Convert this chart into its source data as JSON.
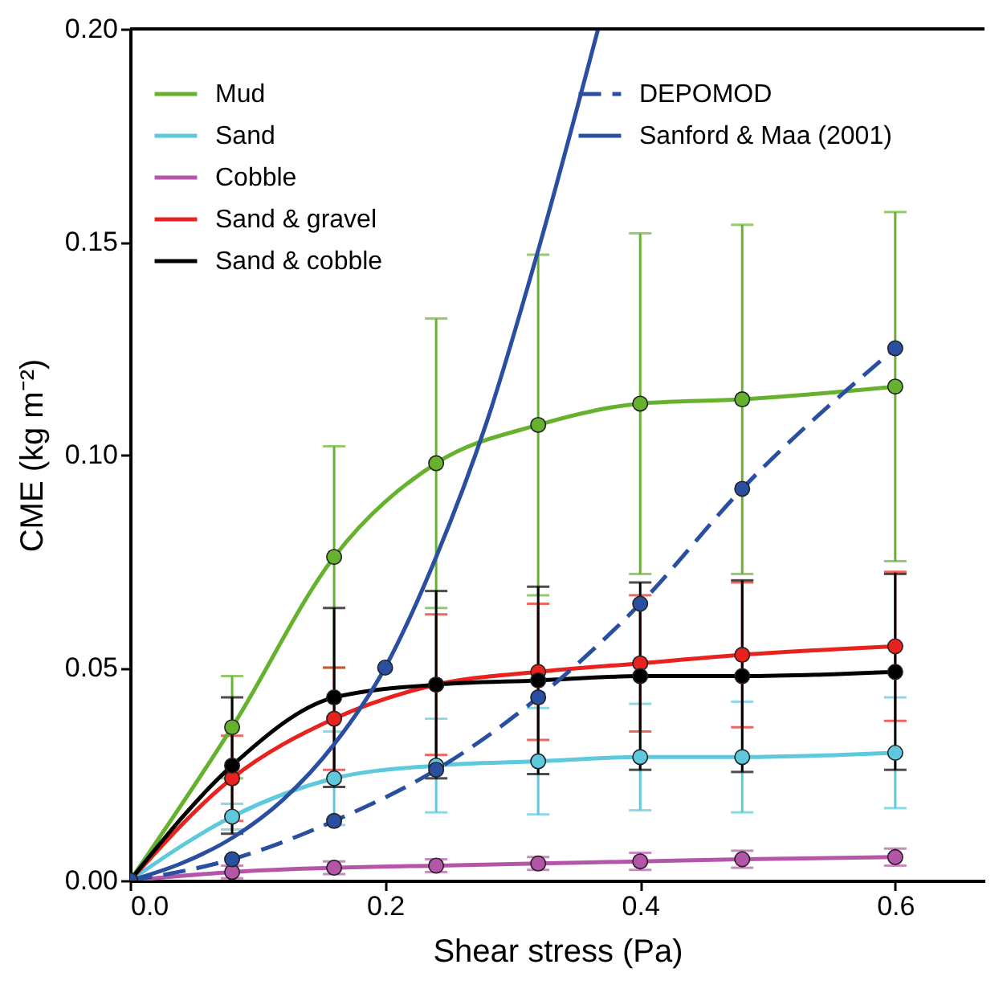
{
  "chart_data": {
    "type": "line",
    "xlabel": "Shear stress (Pa)",
    "ylabel": "CME (kg m⁻²)",
    "xlim": [
      0,
      0.67
    ],
    "ylim": [
      0,
      0.2
    ],
    "xticks": [
      {
        "value": 0,
        "label": "0.0"
      },
      0.2,
      0.4,
      0.6
    ],
    "yticks": [
      {
        "value": 0,
        "label": "0.00"
      },
      0.05,
      {
        "value": 0.1,
        "label": "0.10"
      },
      0.15,
      {
        "value": 0.2,
        "label": "0.20"
      }
    ],
    "grid": false,
    "legend": "top left",
    "marker": "circle",
    "series": [
      {
        "name": "Mud",
        "color": "#66b22e",
        "x": [
          0,
          0.08,
          0.16,
          0.24,
          0.32,
          0.4,
          0.48,
          0.6
        ],
        "values": [
          0,
          0.036,
          0.076,
          0.098,
          0.107,
          0.112,
          0.113,
          0.116
        ],
        "errors": [
          null,
          0.012,
          0.026,
          0.034,
          0.04,
          0.04,
          0.041,
          0.041
        ]
      },
      {
        "name": "Sand",
        "color": "#5ec8dc",
        "x": [
          0,
          0.08,
          0.16,
          0.24,
          0.32,
          0.4,
          0.48,
          0.6
        ],
        "values": [
          0,
          0.015,
          0.024,
          0.027,
          0.028,
          0.029,
          0.029,
          0.03
        ],
        "errors": [
          null,
          0.003,
          0.011,
          0.011,
          0.0125,
          0.0125,
          0.013,
          0.013
        ]
      },
      {
        "name": "Cobble",
        "color": "#b455a8",
        "x": [
          0,
          0.08,
          0.16,
          0.24,
          0.32,
          0.4,
          0.48,
          0.6
        ],
        "values": [
          0,
          0.002,
          0.003,
          0.0035,
          0.004,
          0.0045,
          0.005,
          0.0055
        ],
        "errors": [
          null,
          0.0015,
          0.0015,
          0.0015,
          0.0015,
          0.002,
          0.002,
          0.002
        ]
      },
      {
        "name": "Sand & gravel",
        "color": "#e8231f",
        "x": [
          0,
          0.08,
          0.16,
          0.24,
          0.32,
          0.4,
          0.48,
          0.6
        ],
        "values": [
          0,
          0.024,
          0.038,
          0.046,
          0.049,
          0.051,
          0.053,
          0.055
        ],
        "errors": [
          null,
          0.01,
          0.012,
          0.0165,
          0.016,
          0.016,
          0.017,
          0.0175
        ]
      },
      {
        "name": "Sand & cobble",
        "color": "#000000",
        "x": [
          0,
          0.08,
          0.16,
          0.24,
          0.32,
          0.4,
          0.48,
          0.6
        ],
        "values": [
          0,
          0.027,
          0.043,
          0.046,
          0.047,
          0.048,
          0.048,
          0.049
        ],
        "errors": [
          null,
          0.016,
          0.021,
          0.022,
          0.022,
          0.022,
          0.0225,
          0.023
        ]
      },
      {
        "name": "DEPOMOD",
        "color": "#2a4fa0",
        "line_style": "dashed",
        "x": [
          0,
          0.08,
          0.16,
          0.24,
          0.32,
          0.4,
          0.48,
          0.6
        ],
        "values": [
          0,
          0.005,
          0.014,
          0.026,
          0.043,
          0.065,
          0.092,
          0.125
        ]
      },
      {
        "name": "Sanford & Maa (2001)",
        "color": "#2a4fa0",
        "marker": "none",
        "x": [
          0,
          0.04,
          0.08,
          0.12,
          0.16,
          0.2,
          0.24,
          0.28,
          0.32,
          0.367
        ],
        "values": [
          0,
          0.004,
          0.01,
          0.019,
          0.032,
          0.05,
          0.076,
          0.108,
          0.148,
          0.2
        ]
      },
      {
        "type": "scatter",
        "color": "#2a4fa0",
        "x": [
          0.2
        ],
        "values": [
          0.05
        ]
      }
    ]
  }
}
